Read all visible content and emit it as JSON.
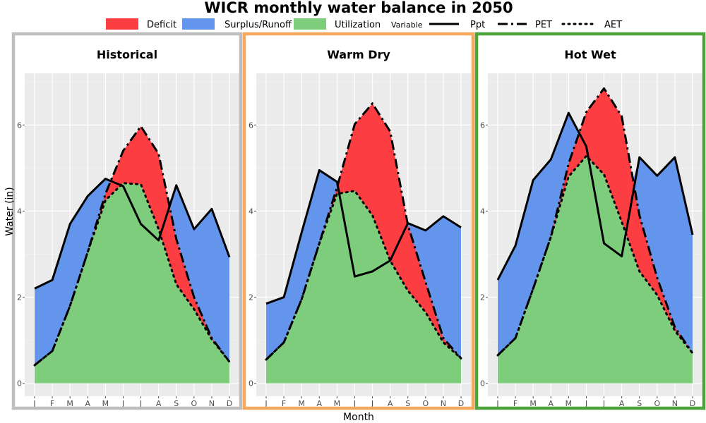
{
  "title": "WICR monthly water balance in 2050",
  "legend": {
    "fill_items": [
      {
        "label": "Deficit",
        "color": "#fc3e43"
      },
      {
        "label": "Surplus/Runoff",
        "color": "#6495ed"
      },
      {
        "label": "Utilization",
        "color": "#7dcd7c"
      }
    ],
    "variable_title": "Variable",
    "line_items": [
      {
        "label": "Ppt",
        "style": "solid"
      },
      {
        "label": "PET",
        "style": "dashdot"
      },
      {
        "label": "AET",
        "style": "dotted"
      }
    ]
  },
  "xlabel": "Month",
  "ylabel": "Water (in)",
  "chart_data": [
    {
      "type": "area",
      "title": "Historical",
      "border_color": "#bebebe",
      "categories": [
        "J",
        "F",
        "M",
        "A",
        "M",
        "J",
        "J",
        "A",
        "S",
        "O",
        "N",
        "D"
      ],
      "ylim": [
        -0.3,
        7.2
      ],
      "yticks": [
        0,
        2,
        4,
        6
      ],
      "grid": true,
      "series": [
        {
          "name": "Ppt",
          "values": [
            2.2,
            2.4,
            3.7,
            4.35,
            4.75,
            4.58,
            3.7,
            3.32,
            4.6,
            3.58,
            4.05,
            2.93
          ]
        },
        {
          "name": "PET",
          "values": [
            0.42,
            0.75,
            1.8,
            3.05,
            4.4,
            5.4,
            5.97,
            5.33,
            3.35,
            2.0,
            1.05,
            0.5
          ]
        },
        {
          "name": "AET",
          "values": [
            0.42,
            0.75,
            1.8,
            3.05,
            4.25,
            4.65,
            4.62,
            3.58,
            2.3,
            1.72,
            1.02,
            0.5
          ]
        }
      ]
    },
    {
      "type": "area",
      "title": "Warm Dry",
      "border_color": "#f4a95d",
      "categories": [
        "J",
        "F",
        "M",
        "A",
        "M",
        "J",
        "J",
        "A",
        "S",
        "O",
        "N",
        "D"
      ],
      "ylim": [
        -0.3,
        7.2
      ],
      "yticks": [
        0,
        2,
        4,
        6
      ],
      "grid": true,
      "series": [
        {
          "name": "Ppt",
          "values": [
            1.85,
            2.0,
            3.5,
            4.95,
            4.68,
            2.48,
            2.6,
            2.85,
            3.72,
            3.55,
            3.88,
            3.62
          ]
        },
        {
          "name": "PET",
          "values": [
            0.55,
            0.95,
            1.95,
            3.25,
            4.55,
            6.02,
            6.5,
            5.85,
            3.68,
            2.35,
            1.05,
            0.58
          ]
        },
        {
          "name": "AET",
          "values": [
            0.55,
            0.95,
            1.95,
            3.25,
            4.4,
            4.47,
            3.9,
            2.85,
            2.15,
            1.65,
            0.95,
            0.58
          ]
        }
      ]
    },
    {
      "type": "area",
      "title": "Hot Wet",
      "border_color": "#4ea43c",
      "categories": [
        "J",
        "F",
        "M",
        "A",
        "M",
        "J",
        "J",
        "A",
        "S",
        "O",
        "N",
        "D"
      ],
      "ylim": [
        -0.3,
        7.2
      ],
      "yticks": [
        0,
        2,
        4,
        6
      ],
      "grid": true,
      "series": [
        {
          "name": "Ppt",
          "values": [
            2.4,
            3.2,
            4.72,
            5.2,
            6.28,
            5.5,
            3.25,
            2.95,
            5.25,
            4.82,
            5.25,
            3.45
          ]
        },
        {
          "name": "PET",
          "values": [
            0.65,
            1.05,
            2.2,
            3.4,
            5.1,
            6.3,
            6.85,
            6.2,
            3.9,
            2.45,
            1.3,
            0.7
          ]
        },
        {
          "name": "AET",
          "values": [
            0.65,
            1.05,
            2.2,
            3.4,
            4.8,
            5.28,
            4.85,
            3.75,
            2.6,
            2.05,
            1.22,
            0.7
          ]
        }
      ]
    }
  ]
}
